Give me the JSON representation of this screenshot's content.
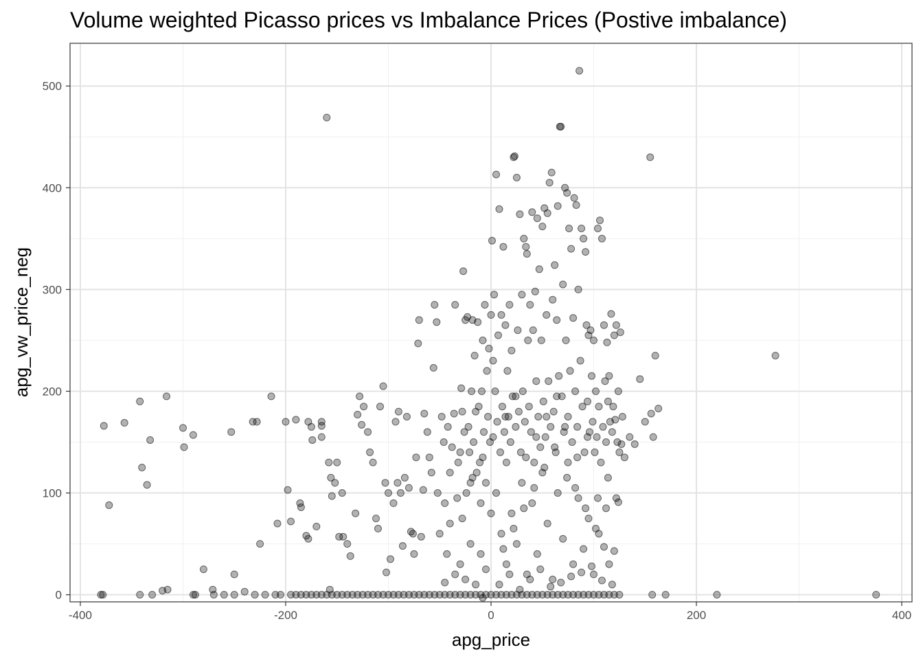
{
  "chart_data": {
    "type": "scatter",
    "title": "Volume weighted Picasso prices vs Imbalance Prices (Postive imbalance)",
    "xlabel": "apg_price",
    "ylabel": "apg_vw_price_neg",
    "xlim": [
      -410,
      410
    ],
    "ylim": [
      -7,
      542
    ],
    "x_ticks": [
      -400,
      -200,
      0,
      200,
      400
    ],
    "y_ticks": [
      0,
      100,
      200,
      300,
      400,
      500
    ],
    "x_tick_labels": [
      "-400",
      "-200",
      "0",
      "200",
      "400"
    ],
    "y_tick_labels": [
      "0",
      "100",
      "200",
      "300",
      "400",
      "500"
    ],
    "grid": true,
    "point_color": "#000000",
    "point_alpha": 0.3,
    "points": [
      [
        -377,
        166
      ],
      [
        -372,
        88
      ],
      [
        -357,
        169
      ],
      [
        -342,
        190
      ],
      [
        -340,
        125
      ],
      [
        -335,
        108
      ],
      [
        -332,
        152
      ],
      [
        -316,
        195
      ],
      [
        -300,
        164
      ],
      [
        -299,
        145
      ],
      [
        -290,
        157
      ],
      [
        -280,
        25
      ],
      [
        -271,
        5
      ],
      [
        -253,
        160
      ],
      [
        -250,
        20
      ],
      [
        -232,
        170
      ],
      [
        -228,
        170
      ],
      [
        -225,
        50
      ],
      [
        -214,
        195
      ],
      [
        -208,
        70
      ],
      [
        -200,
        170
      ],
      [
        -198,
        103
      ],
      [
        -195,
        72
      ],
      [
        -190,
        172
      ],
      [
        -186,
        90
      ],
      [
        -185,
        86
      ],
      [
        -180,
        58
      ],
      [
        -178,
        55
      ],
      [
        -178,
        170
      ],
      [
        -175,
        165
      ],
      [
        -174,
        152
      ],
      [
        -170,
        67
      ],
      [
        -165,
        155
      ],
      [
        -165,
        166
      ],
      [
        -165,
        170
      ],
      [
        -160,
        469
      ],
      [
        -158,
        130
      ],
      [
        -157,
        5
      ],
      [
        -156,
        115
      ],
      [
        -155,
        97
      ],
      [
        -152,
        110
      ],
      [
        -150,
        130
      ],
      [
        -148,
        57
      ],
      [
        -145,
        100
      ],
      [
        -144,
        57
      ],
      [
        -140,
        50
      ],
      [
        -137,
        38
      ],
      [
        -132,
        80
      ],
      [
        -130,
        177
      ],
      [
        -128,
        195
      ],
      [
        -126,
        167
      ],
      [
        -124,
        185
      ],
      [
        -120,
        160
      ],
      [
        -118,
        140
      ],
      [
        -115,
        130
      ],
      [
        -112,
        75
      ],
      [
        -110,
        65
      ],
      [
        -108,
        185
      ],
      [
        -105,
        205
      ],
      [
        -103,
        110
      ],
      [
        -102,
        22
      ],
      [
        -100,
        100
      ],
      [
        -98,
        35
      ],
      [
        -95,
        90
      ],
      [
        -93,
        170
      ],
      [
        -91,
        110
      ],
      [
        -90,
        180
      ],
      [
        -88,
        100
      ],
      [
        -86,
        48
      ],
      [
        -84,
        115
      ],
      [
        -82,
        175
      ],
      [
        -80,
        105
      ],
      [
        -78,
        62
      ],
      [
        -76,
        60
      ],
      [
        -75,
        40
      ],
      [
        -73,
        135
      ],
      [
        -71,
        247
      ],
      [
        -70,
        270
      ],
      [
        -68,
        57
      ],
      [
        -66,
        103
      ],
      [
        -65,
        178
      ],
      [
        -62,
        160
      ],
      [
        -60,
        135
      ],
      [
        -58,
        120
      ],
      [
        -56,
        223
      ],
      [
        -55,
        285
      ],
      [
        -53,
        268
      ],
      [
        -52,
        100
      ],
      [
        -50,
        60
      ],
      [
        -48,
        175
      ],
      [
        -46,
        150
      ],
      [
        -45,
        90
      ],
      [
        -43,
        40
      ],
      [
        -42,
        165
      ],
      [
        -40,
        120
      ],
      [
        -38,
        145
      ],
      [
        -36,
        178
      ],
      [
        -35,
        285
      ],
      [
        -33,
        95
      ],
      [
        -32,
        130
      ],
      [
        -30,
        140
      ],
      [
        -29,
        203
      ],
      [
        -28,
        180
      ],
      [
        -27,
        318
      ],
      [
        -26,
        160
      ],
      [
        -25,
        270
      ],
      [
        -24,
        100
      ],
      [
        -23,
        273
      ],
      [
        -22,
        165
      ],
      [
        -21,
        140
      ],
      [
        -20,
        110
      ],
      [
        -19,
        200
      ],
      [
        -18,
        270
      ],
      [
        -17,
        150
      ],
      [
        -16,
        235
      ],
      [
        -15,
        180
      ],
      [
        -14,
        120
      ],
      [
        -13,
        268
      ],
      [
        -12,
        185
      ],
      [
        -11,
        130
      ],
      [
        -10,
        90
      ],
      [
        -9,
        200
      ],
      [
        -8,
        250
      ],
      [
        -7,
        160
      ],
      [
        -6,
        285
      ],
      [
        -5,
        110
      ],
      [
        -4,
        220
      ],
      [
        -3,
        175
      ],
      [
        -2,
        242
      ],
      [
        -1,
        150
      ],
      [
        0,
        275
      ],
      [
        1,
        348
      ],
      [
        2,
        230
      ],
      [
        3,
        295
      ],
      [
        4,
        200
      ],
      [
        5,
        413
      ],
      [
        6,
        170
      ],
      [
        7,
        255
      ],
      [
        8,
        379
      ],
      [
        9,
        140
      ],
      [
        10,
        275
      ],
      [
        11,
        185
      ],
      [
        12,
        342
      ],
      [
        13,
        160
      ],
      [
        14,
        265
      ],
      [
        15,
        130
      ],
      [
        16,
        220
      ],
      [
        17,
        175
      ],
      [
        18,
        285
      ],
      [
        19,
        150
      ],
      [
        20,
        240
      ],
      [
        21,
        195
      ],
      [
        22,
        430
      ],
      [
        23,
        431
      ],
      [
        24,
        165
      ],
      [
        25,
        410
      ],
      [
        26,
        260
      ],
      [
        27,
        180
      ],
      [
        28,
        374
      ],
      [
        29,
        140
      ],
      [
        30,
        295
      ],
      [
        31,
        200
      ],
      [
        32,
        350
      ],
      [
        33,
        170
      ],
      [
        34,
        342
      ],
      [
        35,
        335
      ],
      [
        36,
        250
      ],
      [
        37,
        185
      ],
      [
        38,
        285
      ],
      [
        39,
        160
      ],
      [
        40,
        376
      ],
      [
        41,
        260
      ],
      [
        42,
        130
      ],
      [
        43,
        298
      ],
      [
        44,
        210
      ],
      [
        45,
        370
      ],
      [
        46,
        175
      ],
      [
        47,
        320
      ],
      [
        48,
        145
      ],
      [
        49,
        250
      ],
      [
        50,
        362
      ],
      [
        51,
        190
      ],
      [
        52,
        380
      ],
      [
        53,
        155
      ],
      [
        54,
        275
      ],
      [
        55,
        375
      ],
      [
        56,
        210
      ],
      [
        57,
        405
      ],
      [
        58,
        165
      ],
      [
        59,
        415
      ],
      [
        60,
        290
      ],
      [
        61,
        180
      ],
      [
        62,
        324
      ],
      [
        63,
        140
      ],
      [
        64,
        270
      ],
      [
        65,
        382
      ],
      [
        66,
        215
      ],
      [
        67,
        460
      ],
      [
        68,
        460
      ],
      [
        69,
        195
      ],
      [
        70,
        305
      ],
      [
        71,
        160
      ],
      [
        72,
        400
      ],
      [
        73,
        250
      ],
      [
        74,
        395
      ],
      [
        75,
        175
      ],
      [
        76,
        360
      ],
      [
        77,
        220
      ],
      [
        78,
        340
      ],
      [
        79,
        150
      ],
      [
        80,
        272
      ],
      [
        81,
        390
      ],
      [
        82,
        200
      ],
      [
        83,
        383
      ],
      [
        84,
        165
      ],
      [
        85,
        300
      ],
      [
        86,
        515
      ],
      [
        87,
        230
      ],
      [
        88,
        360
      ],
      [
        89,
        185
      ],
      [
        90,
        350
      ],
      [
        91,
        140
      ],
      [
        92,
        337
      ],
      [
        93,
        265
      ],
      [
        94,
        190
      ],
      [
        95,
        255
      ],
      [
        96,
        160
      ],
      [
        97,
        260
      ],
      [
        98,
        215
      ],
      [
        99,
        170
      ],
      [
        100,
        250
      ],
      [
        101,
        140
      ],
      [
        102,
        200
      ],
      [
        103,
        155
      ],
      [
        104,
        360
      ],
      [
        105,
        185
      ],
      [
        106,
        368
      ],
      [
        107,
        130
      ],
      [
        108,
        350
      ],
      [
        109,
        165
      ],
      [
        110,
        265
      ],
      [
        111,
        210
      ],
      [
        112,
        150
      ],
      [
        113,
        248
      ],
      [
        114,
        190
      ],
      [
        115,
        215
      ],
      [
        116,
        170
      ],
      [
        117,
        276
      ],
      [
        118,
        160
      ],
      [
        119,
        185
      ],
      [
        120,
        255
      ],
      [
        121,
        172
      ],
      [
        122,
        265
      ],
      [
        123,
        150
      ],
      [
        124,
        200
      ],
      [
        125,
        140
      ],
      [
        126,
        258
      ],
      [
        127,
        148
      ],
      [
        128,
        175
      ],
      [
        130,
        135
      ],
      [
        135,
        155
      ],
      [
        140,
        148
      ],
      [
        145,
        212
      ],
      [
        150,
        170
      ],
      [
        155,
        430
      ],
      [
        156,
        178
      ],
      [
        158,
        155
      ],
      [
        160,
        235
      ],
      [
        163,
        183
      ],
      [
        277,
        235
      ],
      [
        5,
        100
      ],
      [
        10,
        60
      ],
      [
        15,
        30
      ],
      [
        20,
        80
      ],
      [
        25,
        50
      ],
      [
        30,
        110
      ],
      [
        35,
        20
      ],
      [
        40,
        90
      ],
      [
        45,
        40
      ],
      [
        50,
        120
      ],
      [
        55,
        70
      ],
      [
        60,
        15
      ],
      [
        65,
        100
      ],
      [
        70,
        55
      ],
      [
        75,
        130
      ],
      [
        80,
        30
      ],
      [
        85,
        95
      ],
      [
        90,
        45
      ],
      [
        95,
        75
      ],
      [
        100,
        20
      ],
      [
        105,
        60
      ],
      [
        110,
        47
      ],
      [
        115,
        30
      ],
      [
        118,
        10
      ],
      [
        120,
        43
      ],
      [
        122,
        95
      ],
      [
        124,
        91
      ],
      [
        -20,
        50
      ],
      [
        -30,
        30
      ],
      [
        -40,
        70
      ],
      [
        -10,
        40
      ],
      [
        0,
        80
      ],
      [
        8,
        10
      ],
      [
        18,
        20
      ],
      [
        28,
        5
      ],
      [
        38,
        15
      ],
      [
        48,
        25
      ],
      [
        58,
        8
      ],
      [
        68,
        12
      ],
      [
        78,
        18
      ],
      [
        88,
        22
      ],
      [
        98,
        28
      ],
      [
        108,
        14
      ],
      [
        -15,
        10
      ],
      [
        -25,
        15
      ],
      [
        -35,
        20
      ],
      [
        -45,
        12
      ],
      [
        -5,
        25
      ],
      [
        12,
        45
      ],
      [
        22,
        65
      ],
      [
        32,
        85
      ],
      [
        42,
        105
      ],
      [
        52,
        125
      ],
      [
        62,
        145
      ],
      [
        72,
        165
      ],
      [
        82,
        105
      ],
      [
        92,
        85
      ],
      [
        102,
        65
      ],
      [
        112,
        85
      ],
      [
        -8,
        135
      ],
      [
        -18,
        115
      ],
      [
        -28,
        75
      ],
      [
        2,
        155
      ],
      [
        14,
        175
      ],
      [
        24,
        195
      ],
      [
        34,
        135
      ],
      [
        44,
        155
      ],
      [
        54,
        175
      ],
      [
        64,
        195
      ],
      [
        74,
        115
      ],
      [
        84,
        135
      ],
      [
        94,
        155
      ],
      [
        104,
        95
      ],
      [
        114,
        115
      ],
      [
        -380,
        0
      ],
      [
        -378,
        0
      ],
      [
        -342,
        0
      ],
      [
        -330,
        0
      ],
      [
        -320,
        4
      ],
      [
        -315,
        5
      ],
      [
        -290,
        0
      ],
      [
        -288,
        0
      ],
      [
        -270,
        0
      ],
      [
        -260,
        0
      ],
      [
        -250,
        0
      ],
      [
        -240,
        3
      ],
      [
        -230,
        0
      ],
      [
        -220,
        0
      ],
      [
        -210,
        0
      ],
      [
        -205,
        0
      ],
      [
        -195,
        0
      ],
      [
        -190,
        0
      ],
      [
        -185,
        0
      ],
      [
        -180,
        0
      ],
      [
        -175,
        0
      ],
      [
        -170,
        0
      ],
      [
        -165,
        0
      ],
      [
        -160,
        0
      ],
      [
        -155,
        0
      ],
      [
        -150,
        0
      ],
      [
        -145,
        0
      ],
      [
        -140,
        0
      ],
      [
        -135,
        0
      ],
      [
        -130,
        0
      ],
      [
        -125,
        0
      ],
      [
        -120,
        0
      ],
      [
        -115,
        0
      ],
      [
        -110,
        0
      ],
      [
        -105,
        0
      ],
      [
        -100,
        0
      ],
      [
        -95,
        0
      ],
      [
        -90,
        0
      ],
      [
        -85,
        0
      ],
      [
        -80,
        0
      ],
      [
        -75,
        0
      ],
      [
        -70,
        0
      ],
      [
        -65,
        0
      ],
      [
        -60,
        0
      ],
      [
        -55,
        0
      ],
      [
        -50,
        0
      ],
      [
        -45,
        0
      ],
      [
        -40,
        0
      ],
      [
        -35,
        0
      ],
      [
        -30,
        0
      ],
      [
        -25,
        0
      ],
      [
        -20,
        0
      ],
      [
        -15,
        0
      ],
      [
        -10,
        0
      ],
      [
        -5,
        0
      ],
      [
        0,
        0
      ],
      [
        5,
        0
      ],
      [
        10,
        0
      ],
      [
        15,
        0
      ],
      [
        20,
        0
      ],
      [
        25,
        0
      ],
      [
        30,
        0
      ],
      [
        35,
        0
      ],
      [
        40,
        0
      ],
      [
        45,
        0
      ],
      [
        50,
        0
      ],
      [
        55,
        0
      ],
      [
        60,
        0
      ],
      [
        65,
        0
      ],
      [
        70,
        0
      ],
      [
        75,
        0
      ],
      [
        80,
        0
      ],
      [
        85,
        0
      ],
      [
        90,
        0
      ],
      [
        95,
        0
      ],
      [
        100,
        0
      ],
      [
        105,
        0
      ],
      [
        110,
        0
      ],
      [
        115,
        0
      ],
      [
        120,
        0
      ],
      [
        125,
        0
      ],
      [
        157,
        0
      ],
      [
        170,
        0
      ],
      [
        220,
        0
      ],
      [
        375,
        0
      ],
      [
        -8,
        -3
      ]
    ]
  }
}
